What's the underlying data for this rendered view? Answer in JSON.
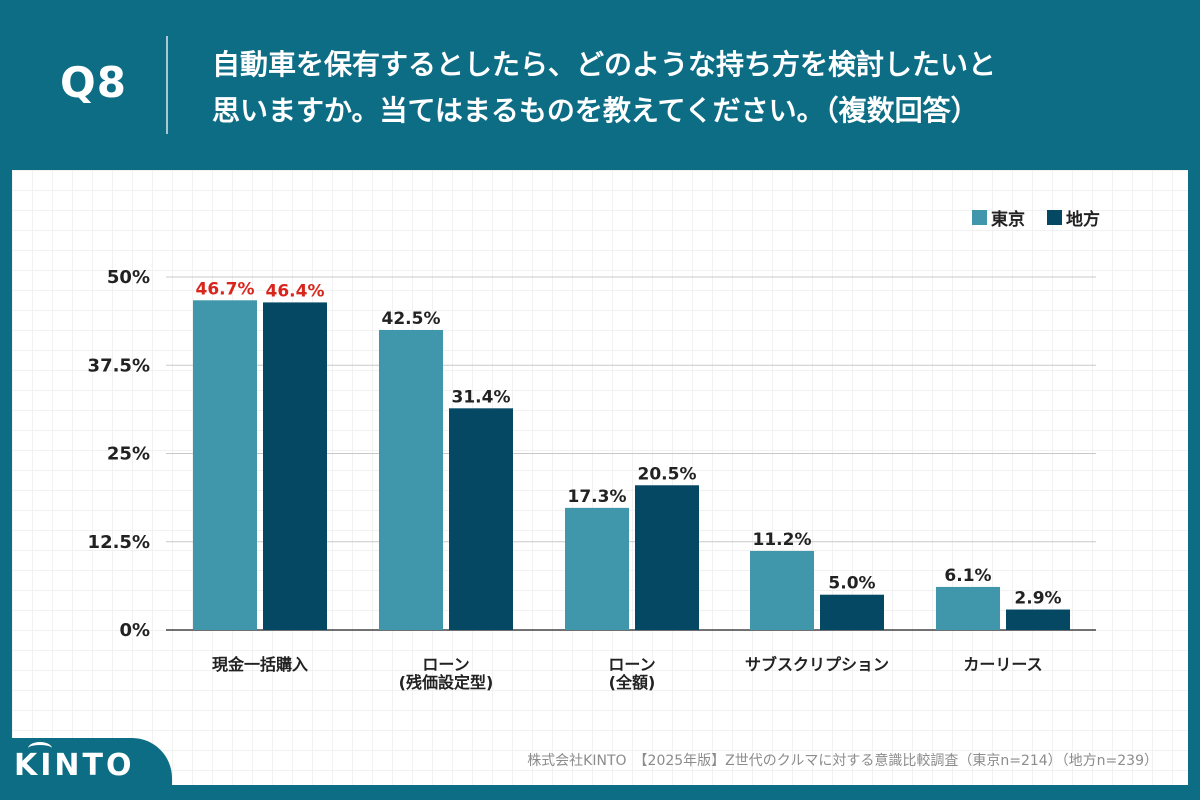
{
  "header": {
    "q_label": "Q8",
    "title_line1": "自動車を保有するとしたら、どのような持ち方を検討したいと",
    "title_line2": "思いますか。当てはまるものを教えてください。（複数回答）"
  },
  "legend": [
    {
      "label": "東京",
      "color": "#4097ab"
    },
    {
      "label": "地方",
      "color": "#044864"
    }
  ],
  "chart_data": {
    "type": "bar",
    "title": "自動車を保有するとしたら、どのような持ち方を検討したいと思いますか。当てはまるものを教えてください。（複数回答）",
    "categories": [
      [
        "現金一括購入"
      ],
      [
        "ローン",
        "(残価設定型)"
      ],
      [
        "ローン",
        "(全額)"
      ],
      [
        "サブスクリプション"
      ],
      [
        "カーリース"
      ]
    ],
    "series": [
      {
        "name": "東京",
        "color": "#4097ab",
        "values": [
          46.7,
          42.5,
          17.3,
          11.2,
          6.1
        ]
      },
      {
        "name": "地方",
        "color": "#044864",
        "values": [
          46.4,
          31.4,
          20.5,
          5.0,
          2.9
        ]
      }
    ],
    "value_labels": [
      [
        "46.7%",
        "42.5%",
        "17.3%",
        "11.2%",
        "6.1%"
      ],
      [
        "46.4%",
        "31.4%",
        "20.5%",
        "5.0%",
        "2.9%"
      ]
    ],
    "highlight_category_index": 0,
    "highlight_color": "#d9261c",
    "yticks": [
      0,
      12.5,
      25,
      37.5,
      50
    ],
    "ytick_labels": [
      "0%",
      "12.5%",
      "25%",
      "37.5%",
      "50%"
    ],
    "ylim": [
      0,
      50
    ],
    "xlabel": "",
    "ylabel": "",
    "grid": true,
    "legend_position": "top-right"
  },
  "footer": {
    "source": "株式会社KINTO　【2025年版】Z世代のクルマに対する意識比較調査（東京n=214）（地方n=239）"
  },
  "logo": {
    "text": "KINTO"
  }
}
